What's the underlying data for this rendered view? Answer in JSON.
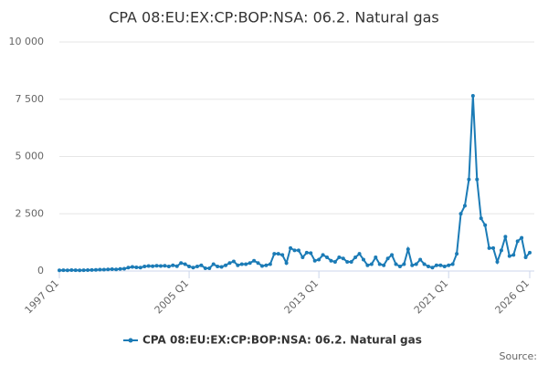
{
  "chart_data": {
    "type": "line",
    "title": "CPA 08:EU:EX:CP:BOP:NSA: 06.2. Natural gas",
    "source_label": "Source:",
    "categories": [
      "1997 Q1",
      null,
      null,
      null,
      null,
      null,
      null,
      null,
      null,
      null,
      null,
      null,
      null,
      null,
      null,
      null,
      null,
      null,
      null,
      null,
      null,
      null,
      null,
      null,
      null,
      null,
      null,
      null,
      null,
      null,
      null,
      null,
      "2005 Q1",
      null,
      null,
      null,
      null,
      null,
      null,
      null,
      null,
      null,
      null,
      null,
      null,
      null,
      null,
      null,
      null,
      null,
      null,
      null,
      null,
      null,
      null,
      null,
      null,
      null,
      null,
      null,
      null,
      null,
      null,
      null,
      "2013 Q1",
      null,
      null,
      null,
      null,
      null,
      null,
      null,
      null,
      null,
      null,
      null,
      null,
      null,
      null,
      null,
      null,
      null,
      null,
      null,
      null,
      null,
      null,
      null,
      null,
      null,
      null,
      null,
      null,
      null,
      null,
      null,
      "2021 Q1",
      null,
      null,
      null,
      null,
      null,
      null,
      null,
      null,
      null,
      null,
      null,
      null,
      null,
      null,
      null,
      null,
      null,
      null,
      null,
      "2026 Q1"
    ],
    "series": [
      {
        "name": "CPA 08:EU:EX:CP:BOP:NSA: 06.2. Natural gas",
        "color": "#1b7bb6",
        "values": [
          30,
          35,
          30,
          40,
          35,
          30,
          35,
          40,
          45,
          50,
          60,
          60,
          70,
          80,
          70,
          90,
          100,
          150,
          180,
          160,
          150,
          200,
          220,
          210,
          230,
          220,
          230,
          200,
          250,
          210,
          350,
          300,
          200,
          150,
          200,
          250,
          120,
          120,
          300,
          200,
          180,
          250,
          350,
          420,
          250,
          300,
          300,
          350,
          450,
          350,
          220,
          250,
          300,
          750,
          750,
          700,
          350,
          1000,
          900,
          900,
          600,
          800,
          780,
          450,
          500,
          700,
          600,
          450,
          400,
          600,
          550,
          400,
          400,
          600,
          750,
          500,
          250,
          300,
          600,
          300,
          250,
          550,
          700,
          300,
          200,
          300,
          950,
          250,
          300,
          500,
          300,
          200,
          150,
          250,
          250,
          200,
          250,
          300,
          750,
          2500,
          2850,
          4000,
          7650,
          4000,
          2300,
          2000,
          1000,
          1000,
          400,
          900,
          1500,
          650,
          700,
          1300,
          1450,
          600,
          800
        ]
      }
    ],
    "ylim": [
      0,
      10000
    ],
    "yticks": [
      0,
      {
        "value": 2500,
        "label": "2 500"
      },
      {
        "value": 5000,
        "label": "5 000"
      },
      {
        "value": 7500,
        "label": "7 500"
      },
      {
        "value": 10000,
        "label": "10 000"
      }
    ],
    "grid": true
  }
}
